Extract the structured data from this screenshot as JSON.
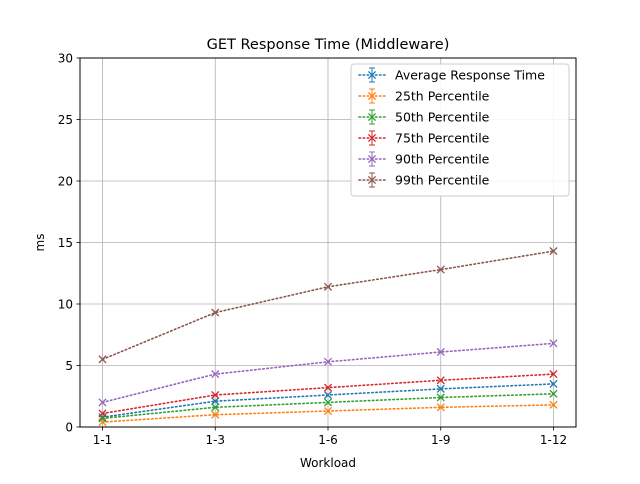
{
  "chart_data": {
    "type": "line",
    "title": "GET Response Time (Middleware)",
    "xlabel": "Workload",
    "ylabel": "ms",
    "categories": [
      "1-1",
      "1-3",
      "1-6",
      "1-9",
      "1-12"
    ],
    "yticks": [
      "0",
      "5",
      "10",
      "15",
      "20",
      "25",
      "30"
    ],
    "ylim": [
      0,
      30
    ],
    "grid": true,
    "legend_position": "top-right",
    "series": [
      {
        "name": "Average Response Time",
        "color": "#1f77b4",
        "values": [
          0.8,
          2.1,
          2.6,
          3.1,
          3.5
        ]
      },
      {
        "name": "25th Percentile",
        "color": "#ff7f0e",
        "values": [
          0.4,
          1.0,
          1.3,
          1.6,
          1.8
        ]
      },
      {
        "name": "50th Percentile",
        "color": "#2ca02c",
        "values": [
          0.7,
          1.6,
          2.0,
          2.4,
          2.7
        ]
      },
      {
        "name": "75th Percentile",
        "color": "#d62728",
        "values": [
          1.1,
          2.6,
          3.2,
          3.8,
          4.3
        ]
      },
      {
        "name": "90th Percentile",
        "color": "#9467bd",
        "values": [
          2.0,
          4.3,
          5.3,
          6.1,
          6.8
        ]
      },
      {
        "name": "99th Percentile",
        "color": "#8c564b",
        "values": [
          5.5,
          9.3,
          11.4,
          12.8,
          14.3
        ]
      }
    ]
  }
}
